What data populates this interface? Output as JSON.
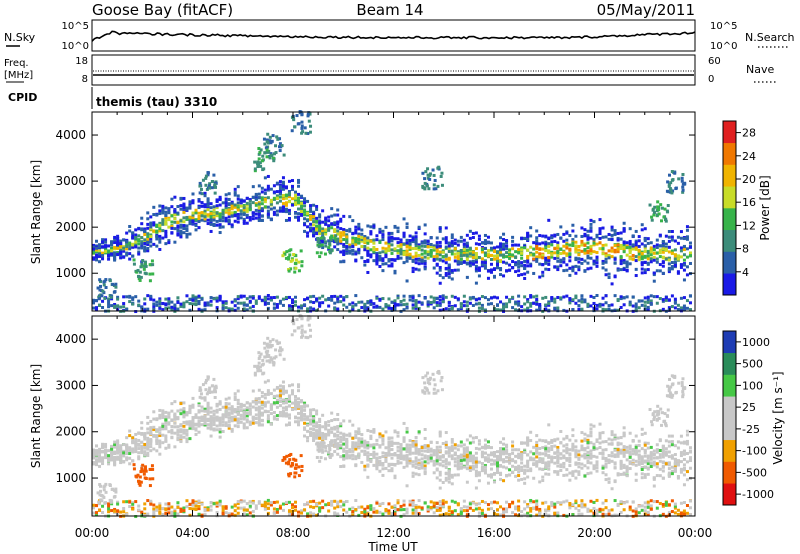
{
  "header": {
    "station": "Goose Bay (fitACF)",
    "beam": "Beam 14",
    "date": "05/May/2011"
  },
  "top_panels": {
    "nsky_label": "N.Sky",
    "nsearch_label": "N.Search",
    "freq_label": "Freq.",
    "freq_unit": "[MHz]",
    "nave_label": "Nave",
    "cpid_label": "CPID",
    "cpid_text": "themis (tau) 3310",
    "nsky_ticks": [
      "10^5",
      "10^0"
    ],
    "nsearch_ticks": [
      "10^5",
      "10^0"
    ],
    "freq_ticks": [
      "18",
      "8"
    ],
    "nave_ticks": [
      "60",
      "0"
    ]
  },
  "colors": {
    "power": [
      "#1a1ae6",
      "#2a5fa8",
      "#3c8c7a",
      "#37b34a",
      "#c8dc28",
      "#f0b400",
      "#f07800",
      "#e02020"
    ],
    "velocity": [
      "#e01010",
      "#f05a00",
      "#f0a000",
      "#c8c8c8",
      "#c8c8c8",
      "#46c846",
      "#2a8c5a",
      "#1e3cb4"
    ],
    "frame": "#000000"
  },
  "chart_data": [
    {
      "type": "heatmap",
      "ylabel": "Slant Range [km]",
      "xlabel": "Time UT",
      "x_ticks": [
        "00:00",
        "04:00",
        "08:00",
        "12:00",
        "16:00",
        "20:00",
        "00:00"
      ],
      "y_ticks": [
        "1000",
        "2000",
        "3000",
        "4000"
      ],
      "xlim": [
        0,
        24
      ],
      "ylim": [
        180,
        4500
      ],
      "colorbar_label": "Power [dB]",
      "colorbar_ticks": [
        "4",
        "8",
        "12",
        "16",
        "20",
        "24",
        "28"
      ],
      "colorbar_range": [
        0,
        30
      ],
      "scatter_band": [
        {
          "t": 0.0,
          "r": 1500,
          "w": 120
        },
        {
          "t": 1.0,
          "r": 1550,
          "w": 150
        },
        {
          "t": 2.0,
          "r": 1800,
          "w": 250
        },
        {
          "t": 3.0,
          "r": 2150,
          "w": 300
        },
        {
          "t": 4.0,
          "r": 2300,
          "w": 250
        },
        {
          "t": 5.0,
          "r": 2350,
          "w": 250
        },
        {
          "t": 6.0,
          "r": 2450,
          "w": 250
        },
        {
          "t": 7.0,
          "r": 2600,
          "w": 250
        },
        {
          "t": 8.0,
          "r": 2650,
          "w": 300
        },
        {
          "t": 9.0,
          "r": 2000,
          "w": 250
        },
        {
          "t": 10.0,
          "r": 1800,
          "w": 300
        },
        {
          "t": 11.0,
          "r": 1650,
          "w": 300
        },
        {
          "t": 12.0,
          "r": 1550,
          "w": 300
        },
        {
          "t": 13.0,
          "r": 1500,
          "w": 300
        },
        {
          "t": 14.0,
          "r": 1450,
          "w": 300
        },
        {
          "t": 15.0,
          "r": 1450,
          "w": 300
        },
        {
          "t": 16.0,
          "r": 1400,
          "w": 300
        },
        {
          "t": 17.0,
          "r": 1450,
          "w": 300
        },
        {
          "t": 18.0,
          "r": 1500,
          "w": 300
        },
        {
          "t": 19.0,
          "r": 1550,
          "w": 350
        },
        {
          "t": 20.0,
          "r": 1600,
          "w": 350
        },
        {
          "t": 21.0,
          "r": 1500,
          "w": 350
        },
        {
          "t": 22.0,
          "r": 1450,
          "w": 300
        },
        {
          "t": 23.0,
          "r": 1450,
          "w": 300
        },
        {
          "t": 24.0,
          "r": 1400,
          "w": 300
        }
      ]
    },
    {
      "type": "heatmap",
      "ylabel": "Slant Range [km]",
      "xlabel": "Time UT",
      "x_ticks": [
        "00:00",
        "04:00",
        "08:00",
        "12:00",
        "16:00",
        "20:00",
        "00:00"
      ],
      "y_ticks": [
        "1000",
        "2000",
        "3000",
        "4000"
      ],
      "xlim": [
        0,
        24
      ],
      "ylim": [
        180,
        4500
      ],
      "colorbar_label": "Velocity [m s⁻¹]",
      "colorbar_ticks": [
        "1000",
        "500",
        "100",
        "25",
        "-25",
        "-100",
        "-500",
        "-1000"
      ],
      "colorbar_range": [
        -1000,
        1000
      ]
    }
  ],
  "axis_title": "Time UT"
}
